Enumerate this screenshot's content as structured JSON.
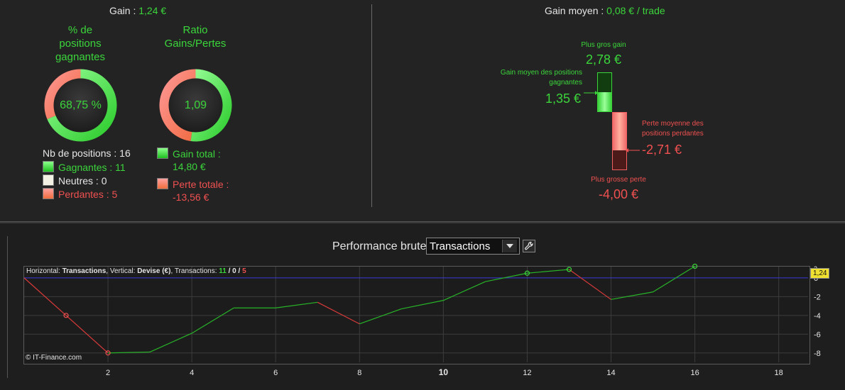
{
  "summary": {
    "gain_label": "Gain :",
    "gain_value": "1,24 €",
    "avg_gain_label": "Gain moyen :",
    "avg_gain_value": "0,08 € / trade"
  },
  "donuts": {
    "win_pct_title": [
      "% de",
      "positions",
      "gagnantes"
    ],
    "win_pct_value": "68,75 %",
    "win_pct_fraction": 0.6875,
    "ratio_title": [
      "Ratio",
      "Gains/Pertes"
    ],
    "ratio_value": "1,09",
    "ratio_fraction": 0.522
  },
  "positions": {
    "count_label": "Nb de positions : 16",
    "winning": "Gagnantes : 11",
    "neutral": "Neutres : 0",
    "losing": "Perdantes : 5"
  },
  "totals": {
    "gain_total_label": "Gain total :",
    "gain_total_value": "14,80 €",
    "loss_total_label": "Perte totale :",
    "loss_total_value": "-13,56 €"
  },
  "extremes": {
    "max_gain_label": "Plus gros gain",
    "max_gain_value": "2,78 €",
    "avg_win_label": [
      "Gain moyen des positions",
      "gagnantes"
    ],
    "avg_win_value": "1,35 €",
    "avg_loss_label": [
      "Perte moyenne des",
      "positions perdantes"
    ],
    "avg_loss_value": "-2,71 €",
    "max_loss_label": "Plus grosse perte",
    "max_loss_value": "-4,00 €"
  },
  "performance": {
    "title": "Performance brute",
    "mode_selected": "Transactions",
    "info_horizontal_label": "Horizontal: ",
    "info_horizontal_value": "Transactions",
    "info_vertical_label": ", Vertical: ",
    "info_vertical_value": "Devise (€)",
    "info_tx_label": ", Transactions: ",
    "info_tx_win": "11",
    "info_tx_sep1": " / ",
    "info_tx_neutral": "0",
    "info_tx_sep2": " / ",
    "info_tx_loss": "5",
    "copyright": "© IT-Finance.com",
    "last_value_badge": "1,24"
  },
  "colors": {
    "green": "#3bd53b",
    "red": "#f05050",
    "zero_line": "#3a3ad8",
    "grid": "#3c3c3c"
  },
  "chart_data": {
    "type": "line",
    "xlabel": "",
    "ylabel": "",
    "xlim": [
      0,
      18.7
    ],
    "ylim": [
      -9,
      1.2
    ],
    "x_ticks": [
      "2",
      "4",
      "6",
      "8",
      "10",
      "12",
      "14",
      "16",
      "18"
    ],
    "y_ticks": [
      "0",
      "-2",
      "-4",
      "-6",
      "-8"
    ],
    "y_tick_top_partial": "2",
    "grid": true,
    "series": [
      {
        "x": [
          0,
          1,
          2,
          3,
          4,
          5,
          6,
          7,
          8,
          9,
          10,
          11,
          12,
          13,
          14,
          15,
          16
        ],
        "y": [
          0,
          -4.0,
          -8.0,
          -7.9,
          -5.9,
          -3.2,
          -3.2,
          -2.6,
          -4.9,
          -3.3,
          -2.4,
          -0.4,
          0.5,
          0.9,
          -2.3,
          -1.5,
          1.24
        ]
      }
    ],
    "markers_at_x": [
      1,
      2,
      12,
      13,
      16
    ]
  }
}
